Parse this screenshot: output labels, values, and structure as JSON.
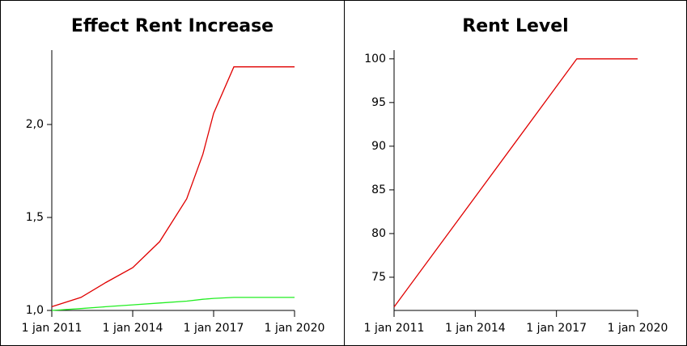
{
  "chart_data": [
    {
      "type": "line",
      "title": "Effect Rent Increase",
      "x": [
        2011,
        2012.08,
        2013,
        2014,
        2015,
        2016,
        2016.6,
        2017,
        2017.75,
        2020
      ],
      "series": [
        {
          "color": "#e00000",
          "values": [
            1.02,
            1.07,
            1.15,
            1.23,
            1.37,
            1.6,
            1.84,
            2.06,
            2.31,
            2.31
          ]
        },
        {
          "color": "#22ee22",
          "values": [
            1.0,
            1.01,
            1.02,
            1.03,
            1.04,
            1.05,
            1.06,
            1.065,
            1.07,
            1.07
          ]
        }
      ],
      "xlim": [
        2011,
        2020
      ],
      "xticks": [
        {
          "value": 2011,
          "label": "1 jan 2011"
        },
        {
          "value": 2014,
          "label": "1 jan 2014"
        },
        {
          "value": 2017,
          "label": "1 jan 2017"
        },
        {
          "value": 2020,
          "label": "1 jan 2020"
        }
      ],
      "ylim": [
        1.0,
        2.4
      ],
      "yticks": [
        {
          "value": 1,
          "label": "1,0"
        },
        {
          "value": 1.5,
          "label": "1,5"
        },
        {
          "value": 2,
          "label": "2,0"
        }
      ]
    },
    {
      "type": "line",
      "title": "Rent Level",
      "x": [
        2011,
        2014,
        2017.75,
        2020
      ],
      "series": [
        {
          "color": "#e00000",
          "values": [
            71.6,
            84.2,
            100,
            100
          ]
        }
      ],
      "xlim": [
        2011,
        2020
      ],
      "xticks": [
        {
          "value": 2011,
          "label": "1 jan 2011"
        },
        {
          "value": 2014,
          "label": "1 jan 2014"
        },
        {
          "value": 2017,
          "label": "1 jan 2017"
        },
        {
          "value": 2020,
          "label": "1 jan 2020"
        }
      ],
      "ylim": [
        71.2,
        101
      ],
      "yticks": [
        75,
        80,
        85,
        90,
        95,
        100
      ]
    }
  ]
}
